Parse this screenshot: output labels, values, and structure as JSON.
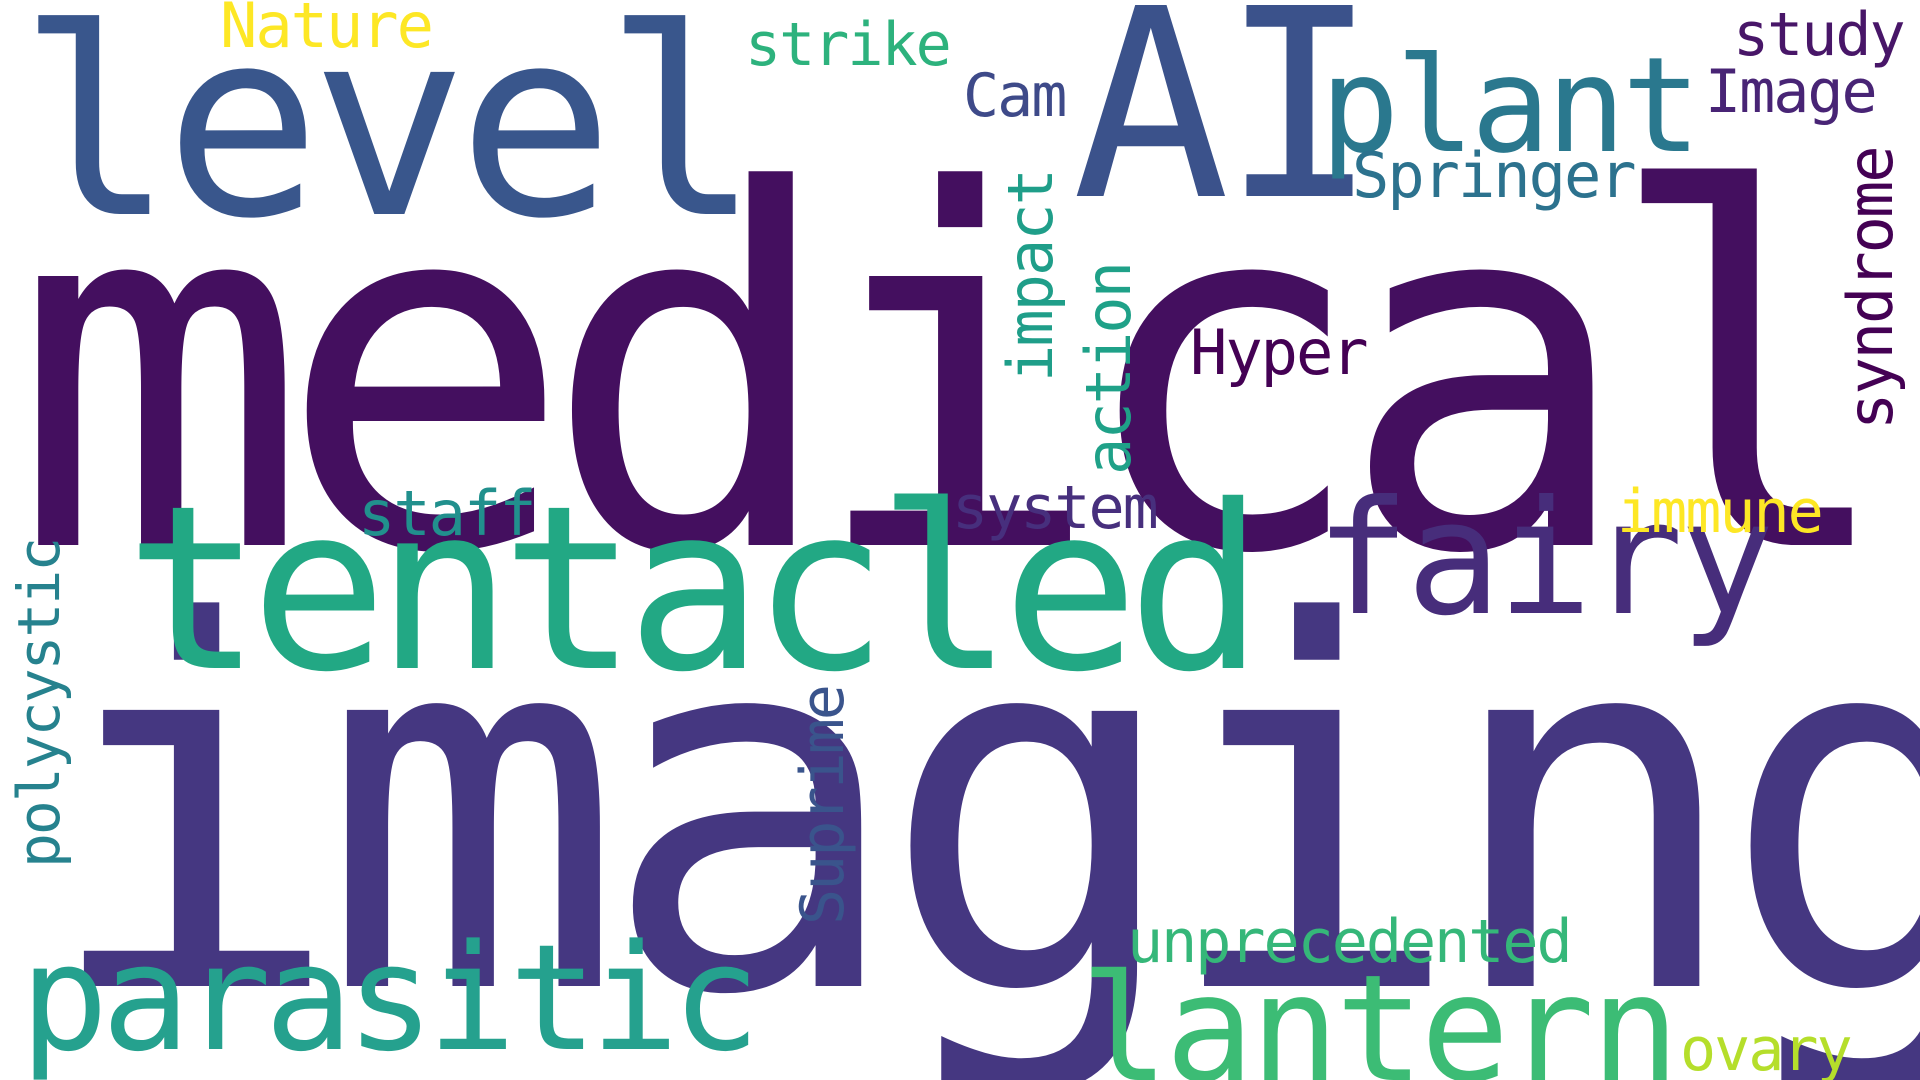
{
  "words": {
    "medical": {
      "text": "medical",
      "color": "#440f5f"
    },
    "imaging": {
      "text": "imaging",
      "color": "#453781"
    },
    "tentacled": {
      "text": "tentacled",
      "color": "#22a884"
    },
    "level": {
      "text": "level",
      "color": "#39568c"
    },
    "ai": {
      "text": "AI",
      "color": "#3b528b"
    },
    "plant": {
      "text": "plant",
      "color": "#2a788e"
    },
    "fairy": {
      "text": "fairy",
      "color": "#472d7b"
    },
    "parasitic": {
      "text": "parasitic",
      "color": "#25a18e"
    },
    "lantern": {
      "text": "lantern",
      "color": "#3cbc75"
    },
    "nature": {
      "text": "Nature",
      "color": "#fde725"
    },
    "strike": {
      "text": "strike",
      "color": "#2db27d"
    },
    "cam": {
      "text": "Cam",
      "color": "#3e4a89"
    },
    "study": {
      "text": "study",
      "color": "#481668"
    },
    "image": {
      "text": "Image",
      "color": "#482475"
    },
    "springer": {
      "text": "Springer",
      "color": "#2c728e"
    },
    "syndrome": {
      "text": "syndrome",
      "color": "#440154"
    },
    "impact": {
      "text": "impact",
      "color": "#1f9e89"
    },
    "action": {
      "text": "action",
      "color": "#1fa188"
    },
    "hyper": {
      "text": "Hyper",
      "color": "#440154"
    },
    "staff": {
      "text": "staff",
      "color": "#21908d"
    },
    "system": {
      "text": "system",
      "color": "#472f7d"
    },
    "immune": {
      "text": "immune",
      "color": "#fde725"
    },
    "polycystic": {
      "text": "polycystic",
      "color": "#26828e"
    },
    "suprime": {
      "text": "Suprime",
      "color": "#3a548c"
    },
    "unprecedented": {
      "text": "unprecedented",
      "color": "#35b779"
    },
    "ovary": {
      "text": "ovary",
      "color": "#b5de2b"
    }
  }
}
